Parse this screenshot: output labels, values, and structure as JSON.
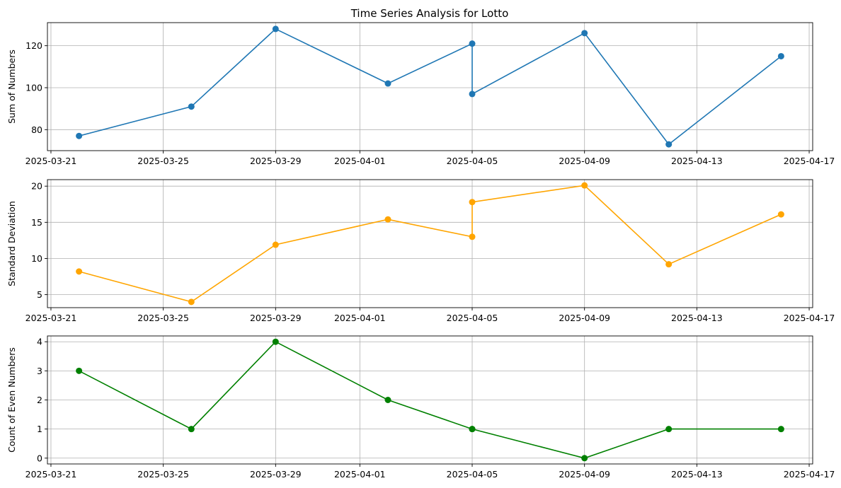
{
  "title": "Time Series Analysis for Lotto",
  "chart_data": [
    {
      "type": "line",
      "ylabel": "Sum of Numbers",
      "xlabel": "",
      "color": "#1f77b4",
      "x": [
        "2025-03-22",
        "2025-03-26",
        "2025-03-29",
        "2025-04-02",
        "2025-04-05",
        "2025-04-05",
        "2025-04-09",
        "2025-04-12",
        "2025-04-16"
      ],
      "y": [
        77,
        91,
        128,
        102,
        121,
        97,
        126,
        73,
        115
      ],
      "ylim": [
        70,
        131
      ],
      "yticks": [
        80,
        100,
        120
      ],
      "xticks": [
        "2025-03-21",
        "2025-03-25",
        "2025-03-29",
        "2025-04-01",
        "2025-04-05",
        "2025-04-09",
        "2025-04-13",
        "2025-04-17"
      ],
      "grid": true
    },
    {
      "type": "line",
      "ylabel": "Standard Deviation",
      "xlabel": "",
      "color": "#ffa500",
      "x": [
        "2025-03-22",
        "2025-03-26",
        "2025-03-29",
        "2025-04-02",
        "2025-04-05",
        "2025-04-05",
        "2025-04-09",
        "2025-04-12",
        "2025-04-16"
      ],
      "y": [
        8.2,
        4.0,
        11.9,
        15.4,
        13.0,
        17.8,
        20.1,
        9.2,
        16.1
      ],
      "ylim": [
        3.2,
        20.9
      ],
      "yticks": [
        5,
        10,
        15,
        20
      ],
      "xticks": [
        "2025-03-21",
        "2025-03-25",
        "2025-03-29",
        "2025-04-01",
        "2025-04-05",
        "2025-04-09",
        "2025-04-13",
        "2025-04-17"
      ],
      "grid": true
    },
    {
      "type": "line",
      "ylabel": "Count of Even Numbers",
      "xlabel": "",
      "color": "#008000",
      "x": [
        "2025-03-22",
        "2025-03-26",
        "2025-03-29",
        "2025-04-02",
        "2025-04-05",
        "2025-04-05",
        "2025-04-09",
        "2025-04-12",
        "2025-04-16"
      ],
      "y": [
        3,
        1,
        4,
        2,
        1,
        1,
        0,
        1,
        1
      ],
      "ylim": [
        -0.2,
        4.2
      ],
      "yticks": [
        0,
        1,
        2,
        3,
        4
      ],
      "xticks": [
        "2025-03-21",
        "2025-03-25",
        "2025-03-29",
        "2025-04-01",
        "2025-04-05",
        "2025-04-09",
        "2025-04-13",
        "2025-04-17"
      ],
      "grid": true
    }
  ]
}
